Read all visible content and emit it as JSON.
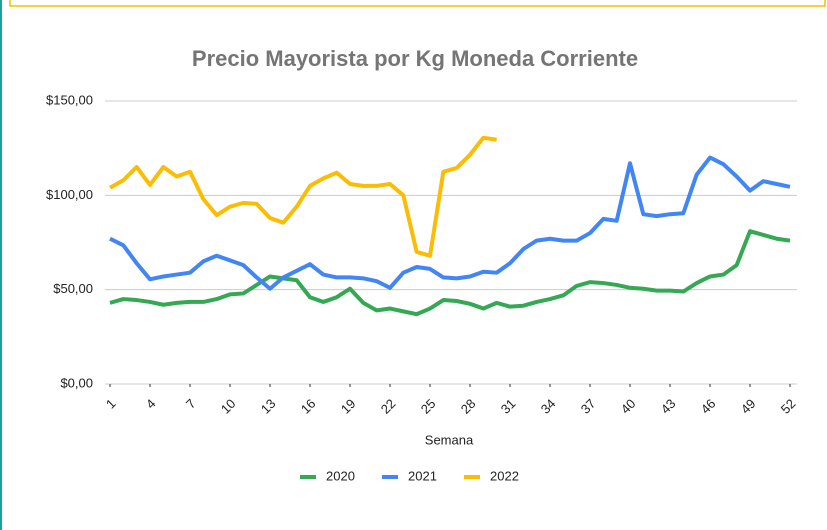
{
  "chart_data": {
    "type": "line",
    "title": "Precio Mayorista por Kg Moneda Corriente",
    "xlabel": "Semana",
    "x": [
      1,
      2,
      3,
      4,
      5,
      6,
      7,
      8,
      9,
      10,
      11,
      12,
      13,
      14,
      15,
      16,
      17,
      18,
      19,
      20,
      21,
      22,
      23,
      24,
      25,
      26,
      27,
      28,
      29,
      30,
      31,
      32,
      33,
      34,
      35,
      36,
      37,
      38,
      39,
      40,
      41,
      42,
      43,
      44,
      45,
      46,
      47,
      48,
      49,
      50,
      51,
      52
    ],
    "xlim": [
      1,
      52
    ],
    "xticks": [
      1,
      4,
      7,
      10,
      13,
      16,
      19,
      22,
      25,
      28,
      31,
      34,
      37,
      40,
      43,
      46,
      49,
      52
    ],
    "ylim": [
      0,
      150
    ],
    "yticks": [
      {
        "value": 0,
        "label": "$0,00"
      },
      {
        "value": 50,
        "label": "$50,00"
      },
      {
        "value": 100,
        "label": "$100,00"
      },
      {
        "value": 150,
        "label": "$150,00"
      }
    ],
    "grid": true,
    "legend": "bottom",
    "series": [
      {
        "name": "2020",
        "color": "#34a853",
        "values": [
          43,
          45,
          44.5,
          43.5,
          42,
          43,
          43.5,
          43.5,
          45,
          47.5,
          48,
          52.5,
          57,
          56,
          55,
          46,
          43.5,
          46,
          50.5,
          43,
          39,
          40,
          38.5,
          37,
          40,
          44.5,
          44,
          42.5,
          40,
          43,
          41,
          41.5,
          43.5,
          45,
          47,
          52,
          54,
          53.5,
          52.5,
          51,
          50.5,
          49.5,
          49.5,
          49,
          53.5,
          57,
          58,
          63,
          81,
          79,
          77,
          76
        ]
      },
      {
        "name": "2021",
        "color": "#4285f4",
        "values": [
          77,
          73.5,
          64,
          55.5,
          57,
          58,
          59,
          65,
          68,
          65.5,
          63,
          56.5,
          50.5,
          56.5,
          60,
          63.5,
          58,
          56.5,
          56.5,
          56,
          54.5,
          51,
          59,
          62,
          61,
          56.5,
          56,
          57,
          59.5,
          59,
          64,
          71.5,
          76,
          77,
          76,
          76,
          80,
          87.5,
          86.5,
          117,
          90,
          89,
          90,
          90.5,
          111,
          120,
          116.5,
          110,
          102.5,
          107.5,
          106,
          104.5
        ]
      },
      {
        "name": "2022",
        "color": "#fbbc04",
        "values": [
          104,
          108,
          115,
          105.5,
          115,
          110,
          112.5,
          98,
          89.5,
          94,
          96,
          95.5,
          88,
          85.5,
          94,
          105,
          109,
          112,
          106,
          105,
          105,
          106,
          100,
          70,
          68,
          112.5,
          114.5,
          121.5,
          130.5,
          129.5,
          null,
          null,
          null,
          null,
          null,
          null,
          null,
          null,
          null,
          null,
          null,
          null,
          null,
          null,
          null,
          null,
          null,
          null,
          null,
          null,
          null,
          null
        ]
      }
    ]
  }
}
